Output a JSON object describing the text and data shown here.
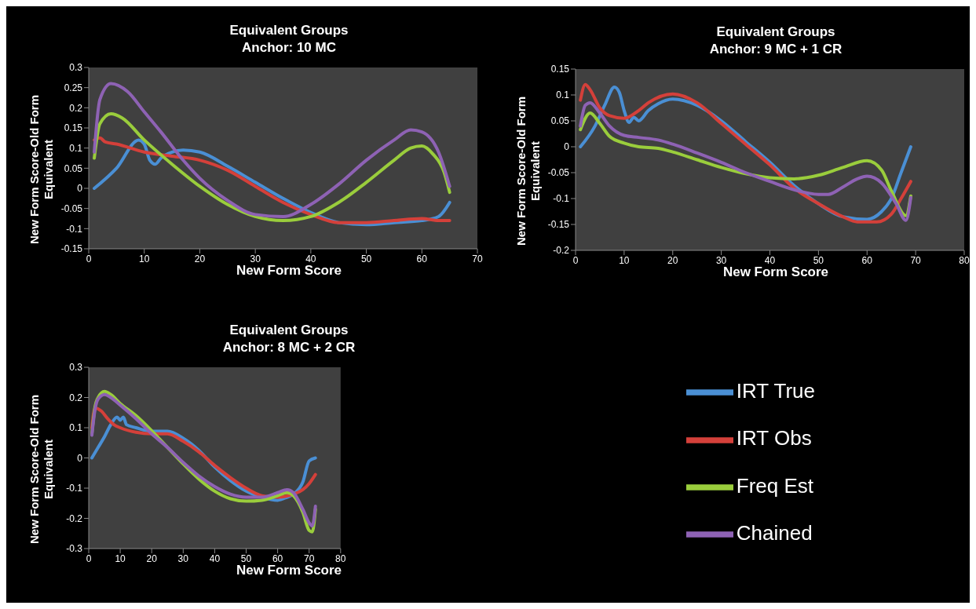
{
  "chart_data": [
    {
      "type": "line",
      "title": "Equivalent Groups",
      "subtitle": "Anchor: 10 MC",
      "xlabel": "New Form Score",
      "ylabel": "New Form Score-Old Form Equivalent",
      "xlim": [
        0,
        70
      ],
      "xticks": [
        0,
        10,
        20,
        30,
        40,
        50,
        60,
        70
      ],
      "ylim": [
        -0.15,
        0.3
      ],
      "yticks": [
        -0.15,
        -0.1,
        -0.05,
        0,
        0.05,
        0.1,
        0.15,
        0.2,
        0.25,
        0.3
      ],
      "grid": false,
      "legend": false,
      "marker": "none",
      "line_style": "solid",
      "series": [
        {
          "color": "#4a8fd4",
          "x": [
            1,
            5,
            9,
            10,
            11,
            12,
            13,
            15,
            17,
            20,
            25,
            30,
            35,
            40,
            45,
            50,
            55,
            60,
            63,
            65
          ],
          "values": [
            0,
            0.05,
            0.12,
            0.11,
            0.07,
            0.06,
            0.075,
            0.09,
            0.095,
            0.09,
            0.055,
            0.015,
            -0.025,
            -0.06,
            -0.085,
            -0.09,
            -0.085,
            -0.08,
            -0.07,
            -0.035
          ]
        },
        {
          "color": "#d4403a",
          "x": [
            1,
            2,
            3,
            5,
            10,
            15,
            20,
            25,
            30,
            35,
            40,
            45,
            50,
            55,
            60,
            63,
            65
          ],
          "values": [
            0.12,
            0.125,
            0.115,
            0.11,
            0.09,
            0.08,
            0.07,
            0.045,
            0.005,
            -0.035,
            -0.065,
            -0.085,
            -0.085,
            -0.08,
            -0.075,
            -0.08,
            -0.08
          ]
        },
        {
          "color": "#9acd3c",
          "x": [
            1,
            2,
            4,
            6,
            10,
            15,
            20,
            25,
            30,
            35,
            40,
            45,
            50,
            55,
            58,
            60,
            62,
            64,
            65
          ],
          "values": [
            0.075,
            0.16,
            0.185,
            0.175,
            0.12,
            0.06,
            0.005,
            -0.04,
            -0.07,
            -0.08,
            -0.07,
            -0.035,
            0.015,
            0.07,
            0.1,
            0.105,
            0.085,
            0.04,
            -0.01
          ]
        },
        {
          "color": "#8e62b4",
          "x": [
            1,
            2,
            4,
            7,
            10,
            13,
            17,
            20,
            25,
            30,
            35,
            40,
            45,
            50,
            55,
            58,
            60,
            63,
            65
          ],
          "values": [
            0.09,
            0.22,
            0.26,
            0.24,
            0.19,
            0.14,
            0.07,
            0.025,
            -0.03,
            -0.065,
            -0.07,
            -0.04,
            0.01,
            0.07,
            0.12,
            0.145,
            0.14,
            0.09,
            0.005
          ]
        }
      ]
    },
    {
      "type": "line",
      "title": "Equivalent Groups",
      "subtitle": "Anchor: 9 MC + 1 CR",
      "xlabel": "New Form Score",
      "ylabel": "New Form Score-Old Form Equivalent",
      "xlim": [
        0,
        80
      ],
      "xticks": [
        0,
        10,
        20,
        30,
        40,
        50,
        60,
        70,
        80
      ],
      "ylim": [
        -0.2,
        0.15
      ],
      "yticks": [
        -0.2,
        -0.15,
        -0.1,
        -0.05,
        0,
        0.05,
        0.1,
        0.15
      ],
      "grid": false,
      "legend": false,
      "marker": "none",
      "line_style": "solid",
      "series": [
        {
          "color": "#4a8fd4",
          "x": [
            1,
            4,
            6,
            8,
            9,
            10,
            11,
            12,
            13,
            15,
            17,
            20,
            25,
            30,
            35,
            40,
            45,
            50,
            55,
            60,
            63,
            65,
            67,
            69
          ],
          "values": [
            0,
            0.04,
            0.08,
            0.115,
            0.105,
            0.07,
            0.047,
            0.057,
            0.05,
            0.07,
            0.083,
            0.092,
            0.08,
            0.05,
            0.01,
            -0.03,
            -0.075,
            -0.11,
            -0.135,
            -0.14,
            -0.125,
            -0.1,
            -0.05,
            0
          ]
        },
        {
          "color": "#d4403a",
          "x": [
            1,
            2,
            3,
            5,
            7,
            10,
            13,
            15,
            20,
            25,
            30,
            35,
            40,
            45,
            50,
            55,
            58,
            62,
            65,
            67,
            69
          ],
          "values": [
            0.09,
            0.12,
            0.11,
            0.075,
            0.06,
            0.055,
            0.07,
            0.085,
            0.102,
            0.085,
            0.045,
            0.005,
            -0.035,
            -0.08,
            -0.11,
            -0.135,
            -0.145,
            -0.145,
            -0.13,
            -0.1,
            -0.067
          ]
        },
        {
          "color": "#9acd3c",
          "x": [
            1,
            3,
            5,
            7,
            10,
            13,
            17,
            20,
            25,
            30,
            35,
            40,
            45,
            50,
            55,
            60,
            63,
            65,
            68,
            69
          ],
          "values": [
            0.033,
            0.065,
            0.045,
            0.02,
            0.007,
            0,
            -0.003,
            -0.01,
            -0.025,
            -0.04,
            -0.052,
            -0.06,
            -0.062,
            -0.055,
            -0.04,
            -0.027,
            -0.045,
            -0.085,
            -0.133,
            -0.095
          ]
        },
        {
          "color": "#8e62b4",
          "x": [
            1,
            2,
            3,
            5,
            7,
            10,
            13,
            17,
            20,
            25,
            30,
            35,
            40,
            45,
            50,
            52,
            55,
            58,
            60,
            63,
            66,
            68,
            69
          ],
          "values": [
            0.04,
            0.08,
            0.085,
            0.065,
            0.04,
            0.022,
            0.018,
            0.013,
            0.005,
            -0.012,
            -0.03,
            -0.05,
            -0.067,
            -0.083,
            -0.092,
            -0.092,
            -0.078,
            -0.062,
            -0.057,
            -0.07,
            -0.11,
            -0.142,
            -0.098
          ]
        }
      ]
    },
    {
      "type": "line",
      "title": "Equivalent Groups",
      "subtitle": "Anchor: 8 MC + 2 CR",
      "xlabel": "New Form Score",
      "ylabel": "New Form Score-Old Form Equivalent",
      "xlim": [
        0,
        80
      ],
      "xticks": [
        0,
        10,
        20,
        30,
        40,
        50,
        60,
        70,
        80
      ],
      "ylim": [
        -0.3,
        0.3
      ],
      "yticks": [
        -0.3,
        -0.2,
        -0.1,
        0,
        0.1,
        0.2,
        0.3
      ],
      "grid": false,
      "legend": "right",
      "marker": "none",
      "line_style": "solid",
      "series": [
        {
          "name": "IRT True",
          "color": "#4a8fd4",
          "x": [
            1,
            3,
            5,
            7,
            9,
            10,
            11,
            12,
            15,
            20,
            25,
            30,
            35,
            40,
            45,
            50,
            55,
            60,
            63,
            65,
            68,
            70,
            72
          ],
          "values": [
            0,
            0.035,
            0.07,
            0.11,
            0.135,
            0.125,
            0.135,
            0.11,
            0.1,
            0.088,
            0.088,
            0.065,
            0.025,
            -0.03,
            -0.075,
            -0.11,
            -0.13,
            -0.14,
            -0.13,
            -0.12,
            -0.08,
            -0.01,
            0
          ]
        },
        {
          "name": "IRT Obs",
          "color": "#d4403a",
          "x": [
            1,
            2,
            4,
            6,
            8,
            10,
            15,
            20,
            25,
            30,
            35,
            40,
            45,
            50,
            55,
            60,
            65,
            68,
            70,
            72
          ],
          "values": [
            0.1,
            0.165,
            0.155,
            0.13,
            0.11,
            0.1,
            0.085,
            0.08,
            0.08,
            0.055,
            0.02,
            -0.025,
            -0.065,
            -0.1,
            -0.125,
            -0.13,
            -0.12,
            -0.105,
            -0.085,
            -0.055
          ]
        },
        {
          "name": "Freq Est",
          "color": "#9acd3c",
          "x": [
            1,
            2,
            3,
            5,
            7,
            10,
            15,
            20,
            25,
            30,
            35,
            40,
            45,
            50,
            55,
            60,
            63,
            65,
            68,
            70,
            71,
            72
          ],
          "values": [
            0.08,
            0.17,
            0.2,
            0.22,
            0.21,
            0.18,
            0.14,
            0.09,
            0.035,
            -0.02,
            -0.07,
            -0.11,
            -0.135,
            -0.143,
            -0.14,
            -0.125,
            -0.115,
            -0.125,
            -0.18,
            -0.24,
            -0.245,
            -0.17
          ]
        },
        {
          "name": "Chained",
          "color": "#8e62b4",
          "x": [
            1,
            2,
            3,
            5,
            7,
            10,
            15,
            20,
            25,
            30,
            35,
            40,
            45,
            50,
            55,
            60,
            63,
            65,
            68,
            70,
            71,
            72
          ],
          "values": [
            0.075,
            0.16,
            0.195,
            0.21,
            0.2,
            0.175,
            0.13,
            0.08,
            0.035,
            -0.015,
            -0.06,
            -0.095,
            -0.12,
            -0.13,
            -0.13,
            -0.115,
            -0.105,
            -0.115,
            -0.17,
            -0.215,
            -0.225,
            -0.16
          ]
        }
      ]
    }
  ]
}
